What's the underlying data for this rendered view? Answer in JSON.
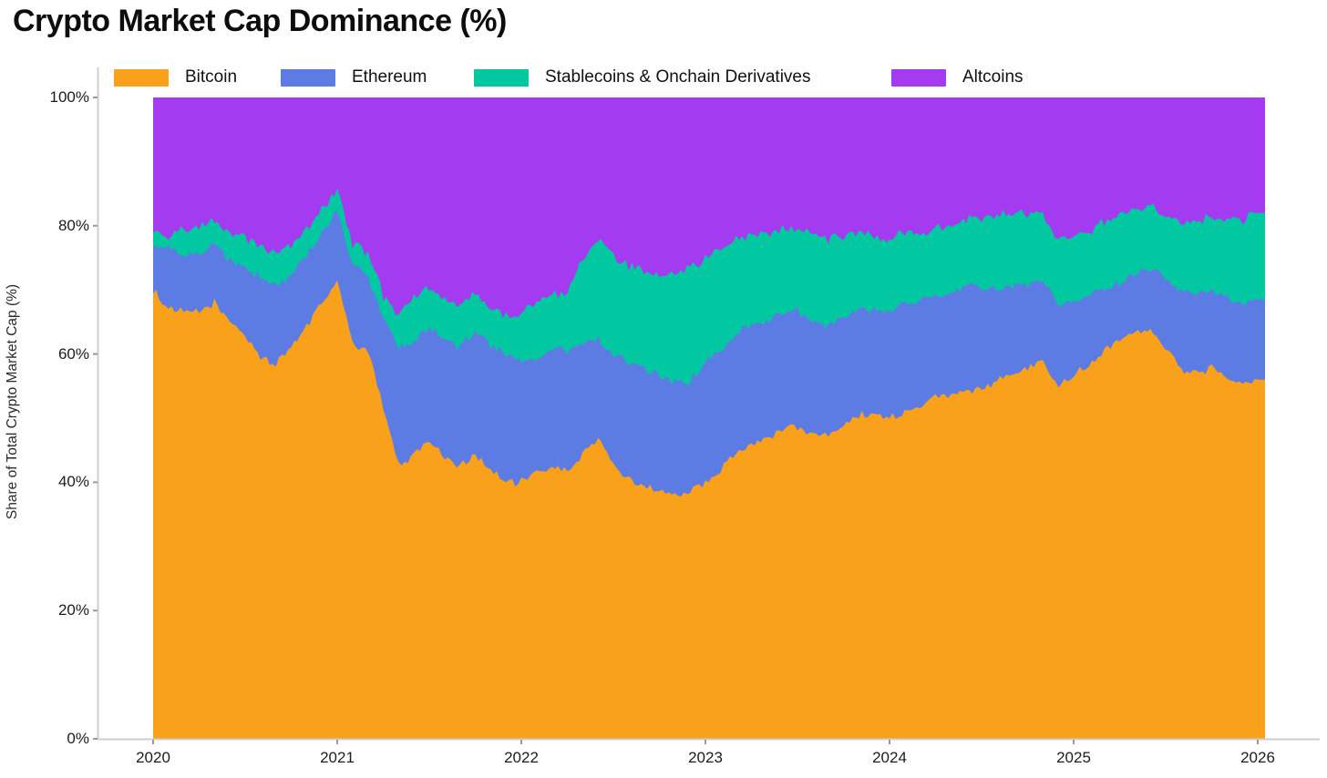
{
  "page_title": "Crypto Market Cap Dominance (%)",
  "chart_data": {
    "type": "area",
    "stacked": true,
    "title": "Crypto Market Cap Dominance (%)",
    "ylabel": "Share of Total Crypto Market Cap (%)",
    "xlabel": "",
    "ylim": [
      0,
      100
    ],
    "grid": false,
    "legend_position": "top",
    "x_tick_labels": [
      "2020",
      "2021",
      "2022",
      "2023",
      "2024",
      "2025",
      "2026"
    ],
    "y_tick_labels": [
      "0%",
      "20%",
      "40%",
      "60%",
      "80%",
      "100%"
    ],
    "months": [
      "2020-01",
      "2020-02",
      "2020-03",
      "2020-04",
      "2020-05",
      "2020-06",
      "2020-07",
      "2020-08",
      "2020-09",
      "2020-10",
      "2020-11",
      "2020-12",
      "2021-01",
      "2021-02",
      "2021-03",
      "2021-04",
      "2021-05",
      "2021-06",
      "2021-07",
      "2021-08",
      "2021-09",
      "2021-10",
      "2021-11",
      "2021-12",
      "2022-01",
      "2022-02",
      "2022-03",
      "2022-04",
      "2022-05",
      "2022-06",
      "2022-07",
      "2022-08",
      "2022-09",
      "2022-10",
      "2022-11",
      "2022-12",
      "2023-01",
      "2023-02",
      "2023-03",
      "2023-04",
      "2023-05",
      "2023-06",
      "2023-07",
      "2023-08",
      "2023-09",
      "2023-10",
      "2023-11",
      "2023-12",
      "2024-01",
      "2024-02",
      "2024-03",
      "2024-04",
      "2024-05",
      "2024-06",
      "2024-07",
      "2024-08",
      "2024-09",
      "2024-10",
      "2024-11",
      "2024-12",
      "2025-01",
      "2025-02",
      "2025-03",
      "2025-04",
      "2025-05",
      "2025-06",
      "2025-07",
      "2025-08",
      "2025-09",
      "2025-10",
      "2025-11",
      "2025-12",
      "2026-01"
    ],
    "series": [
      {
        "name": "Bitcoin",
        "color": "#F9A11B",
        "values": [
          70.0,
          67.0,
          66.5,
          66.5,
          68.0,
          65.0,
          63.0,
          59.5,
          58.5,
          61.0,
          64.5,
          68.0,
          71.5,
          61.5,
          60.5,
          52.0,
          42.5,
          44.5,
          46.5,
          44.0,
          42.5,
          44.5,
          42.0,
          40.0,
          40.0,
          41.5,
          42.5,
          41.5,
          44.5,
          47.0,
          42.5,
          40.5,
          39.5,
          38.5,
          38.0,
          38.5,
          40.0,
          42.0,
          44.5,
          46.0,
          46.5,
          48.5,
          48.5,
          47.5,
          47.5,
          49.0,
          50.5,
          50.5,
          50.0,
          51.0,
          51.5,
          53.5,
          53.5,
          54.0,
          54.5,
          56.0,
          57.0,
          58.0,
          59.0,
          55.0,
          56.5,
          58.5,
          60.5,
          62.5,
          63.5,
          64.0,
          61.0,
          57.5,
          57.0,
          58.0,
          56.5,
          55.5,
          56.0
        ]
      },
      {
        "name": "Ethereum",
        "color": "#5C7CE4",
        "values": [
          7.5,
          9.5,
          9.0,
          9.0,
          9.0,
          9.5,
          10.5,
          12.5,
          12.0,
          11.5,
          11.0,
          10.8,
          10.8,
          12.5,
          11.8,
          13.5,
          18.5,
          17.5,
          17.5,
          18.5,
          18.5,
          19.0,
          19.5,
          20.0,
          19.0,
          18.0,
          18.5,
          19.0,
          17.5,
          15.5,
          17.5,
          18.5,
          18.5,
          18.0,
          17.5,
          17.5,
          18.5,
          18.5,
          18.5,
          19.0,
          18.5,
          18.0,
          18.5,
          17.5,
          17.0,
          16.5,
          16.5,
          16.5,
          16.5,
          17.0,
          17.0,
          16.0,
          16.0,
          16.5,
          15.5,
          14.0,
          13.5,
          13.0,
          12.5,
          13.0,
          12.0,
          10.5,
          9.5,
          8.5,
          9.0,
          9.0,
          10.5,
          12.5,
          12.5,
          12.0,
          12.0,
          12.5,
          12.5
        ]
      },
      {
        "name": "Stablecoins & Onchain Derivatives",
        "color": "#02C8A2",
        "values": [
          2.0,
          2.2,
          3.8,
          4.0,
          4.0,
          4.3,
          4.5,
          4.7,
          5.0,
          4.8,
          4.2,
          3.8,
          3.6,
          3.3,
          3.5,
          3.7,
          5.0,
          6.5,
          6.8,
          6.0,
          6.5,
          5.8,
          5.6,
          6.0,
          7.5,
          8.5,
          8.5,
          9.0,
          12.5,
          15.5,
          15.5,
          14.5,
          15.0,
          15.5,
          17.0,
          17.5,
          16.5,
          15.5,
          15.0,
          13.5,
          13.5,
          13.0,
          12.5,
          13.5,
          13.5,
          13.0,
          12.0,
          11.5,
          11.5,
          11.0,
          10.0,
          10.5,
          10.5,
          10.5,
          11.0,
          11.5,
          11.5,
          11.0,
          10.0,
          9.5,
          9.5,
          10.0,
          10.5,
          10.5,
          9.5,
          10.0,
          10.0,
          10.5,
          11.0,
          11.5,
          12.5,
          13.0,
          13.5
        ]
      },
      {
        "name": "Altcoins",
        "color": "#A43BF0",
        "values": [
          20.5,
          21.3,
          20.7,
          20.5,
          19.0,
          21.2,
          22.0,
          23.3,
          24.5,
          22.7,
          20.3,
          17.4,
          14.1,
          22.7,
          24.2,
          30.8,
          34.0,
          31.5,
          29.2,
          31.5,
          32.5,
          30.7,
          32.9,
          34.0,
          33.5,
          32.0,
          30.5,
          30.5,
          25.5,
          22.0,
          24.5,
          26.5,
          27.0,
          28.0,
          27.5,
          26.5,
          25.0,
          24.0,
          22.0,
          21.5,
          21.5,
          20.5,
          20.5,
          21.5,
          22.0,
          21.5,
          21.0,
          21.5,
          22.0,
          21.0,
          21.5,
          20.0,
          20.0,
          19.0,
          19.0,
          18.5,
          18.0,
          18.0,
          18.5,
          22.5,
          22.0,
          21.0,
          19.5,
          18.5,
          18.0,
          17.0,
          18.5,
          19.5,
          19.5,
          18.5,
          19.0,
          19.0,
          18.0
        ]
      }
    ],
    "colors": {
      "bitcoin": "#F9A11B",
      "ethereum": "#5C7CE4",
      "stablecoins": "#02C8A2",
      "altcoins": "#A43BF0",
      "axis_spine": "#cfcfcf",
      "tick_mark": "#999999",
      "text": "#1c1c1c",
      "title": "#0d0d0d"
    }
  }
}
